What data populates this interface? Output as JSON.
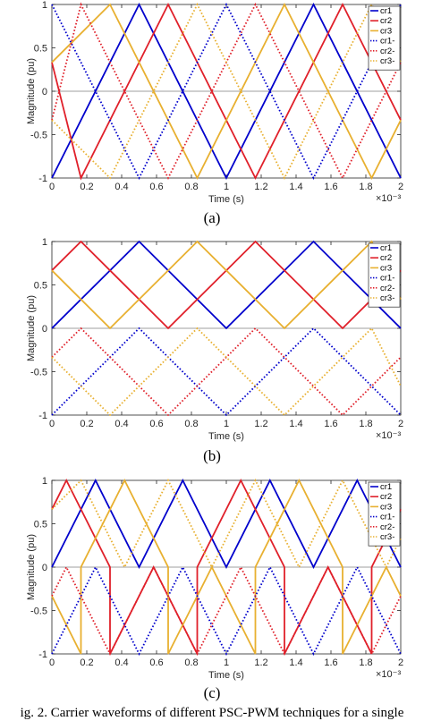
{
  "caption": "ig. 2. Carrier waveforms of different PSC-PWM techniques for a single",
  "legend_labels": [
    "cr1",
    "cr2",
    "cr3",
    "cr1-",
    "cr2-",
    "cr3-"
  ],
  "colors": {
    "cr1": "#0000cc",
    "cr2": "#e0202a",
    "cr3": "#e8b030"
  },
  "chart_data": [
    {
      "type": "line",
      "panel_label": "(a)",
      "xlabel": "Time (s)",
      "ylabel": "Magnitude (pu)",
      "x_exponent_label": "×10⁻³",
      "xlim": [
        0,
        2
      ],
      "ylim": [
        -1,
        1
      ],
      "x_ticks": [
        "0",
        "0.2",
        "0.4",
        "0.6",
        "0.8",
        "1",
        "1.2",
        "1.4",
        "1.6",
        "1.8",
        "2"
      ],
      "y_ticks": [
        "1",
        "0.5",
        "0",
        "-0.5",
        "-1"
      ],
      "grid": false,
      "legend": "top-right",
      "series": [
        {
          "name": "cr1",
          "style": "solid",
          "color": "#0000cc",
          "x": [
            0,
            0.5,
            1,
            1.5,
            2
          ],
          "y": [
            -1,
            1,
            -1,
            1,
            -1
          ]
        },
        {
          "name": "cr2",
          "style": "solid",
          "color": "#e0202a",
          "x": [
            0,
            0.1667,
            0.6667,
            1.1667,
            1.6667,
            2
          ],
          "y": [
            0.333,
            -1,
            1,
            -1,
            1,
            -0.333
          ]
        },
        {
          "name": "cr3",
          "style": "solid",
          "color": "#e8b030",
          "x": [
            0,
            0.3333,
            0.8333,
            1.3333,
            1.8333,
            2
          ],
          "y": [
            0.333,
            1,
            -1,
            1,
            -1,
            -0.333
          ]
        },
        {
          "name": "cr1-",
          "style": "dotted",
          "color": "#0000cc",
          "x": [
            0,
            0.5,
            1,
            1.5,
            2
          ],
          "y": [
            1,
            -1,
            1,
            -1,
            1
          ]
        },
        {
          "name": "cr2-",
          "style": "dotted",
          "color": "#e0202a",
          "x": [
            0,
            0.1667,
            0.6667,
            1.1667,
            1.6667,
            2
          ],
          "y": [
            -0.333,
            1,
            -1,
            1,
            -1,
            0.333
          ]
        },
        {
          "name": "cr3-",
          "style": "dotted",
          "color": "#e8b030",
          "x": [
            0,
            0.3333,
            0.8333,
            1.3333,
            1.8333,
            2
          ],
          "y": [
            -0.333,
            -1,
            1,
            -1,
            1,
            0.333
          ]
        }
      ]
    },
    {
      "type": "line",
      "panel_label": "(b)",
      "xlabel": "Time (s)",
      "ylabel": "Magnitude (pu)",
      "x_exponent_label": "×10⁻³",
      "xlim": [
        0,
        2
      ],
      "ylim": [
        -1,
        1
      ],
      "x_ticks": [
        "0",
        "0.2",
        "0.4",
        "0.6",
        "0.8",
        "1",
        "1.2",
        "1.4",
        "1.6",
        "1.8",
        "2"
      ],
      "y_ticks": [
        "1",
        "0.5",
        "0",
        "-0.5",
        "-1"
      ],
      "grid": false,
      "legend": "top-right",
      "series": [
        {
          "name": "cr1",
          "style": "solid",
          "color": "#0000cc",
          "x": [
            0,
            0.5,
            1,
            1.5,
            2
          ],
          "y": [
            0,
            1,
            0,
            1,
            0
          ]
        },
        {
          "name": "cr2",
          "style": "solid",
          "color": "#e0202a",
          "x": [
            0,
            0.1667,
            0.6667,
            1.1667,
            1.6667,
            2
          ],
          "y": [
            0.667,
            1,
            0,
            1,
            0,
            0.667
          ]
        },
        {
          "name": "cr3",
          "style": "solid",
          "color": "#e8b030",
          "x": [
            0,
            0.3333,
            0.8333,
            1.3333,
            1.8333,
            2
          ],
          "y": [
            0.667,
            0,
            1,
            0,
            1,
            0.333
          ]
        },
        {
          "name": "cr1-",
          "style": "dotted",
          "color": "#0000cc",
          "x": [
            0,
            0.5,
            1,
            1.5,
            2
          ],
          "y": [
            -1,
            0,
            -1,
            0,
            -1
          ]
        },
        {
          "name": "cr2-",
          "style": "dotted",
          "color": "#e0202a",
          "x": [
            0,
            0.1667,
            0.6667,
            1.1667,
            1.6667,
            2
          ],
          "y": [
            -0.333,
            0,
            -1,
            0,
            -1,
            -0.333
          ]
        },
        {
          "name": "cr3-",
          "style": "dotted",
          "color": "#e8b030",
          "x": [
            0,
            0.3333,
            0.8333,
            1.3333,
            1.8333,
            2
          ],
          "y": [
            -0.333,
            -1,
            0,
            -1,
            0,
            -0.667
          ]
        }
      ]
    },
    {
      "type": "line",
      "panel_label": "(c)",
      "xlabel": "Time (s)",
      "ylabel": "Magnitude (pu)",
      "x_exponent_label": "×10⁻³",
      "xlim": [
        0,
        2
      ],
      "ylim": [
        -1,
        1
      ],
      "x_ticks": [
        "0",
        "0.2",
        "0.4",
        "0.6",
        "0.8",
        "1",
        "1.2",
        "1.4",
        "1.6",
        "1.8",
        "2"
      ],
      "y_ticks": [
        "1",
        "0.5",
        "0",
        "-0.5",
        "-1"
      ],
      "grid": false,
      "legend": "top-right",
      "series": [
        {
          "name": "cr1",
          "style": "solid",
          "color": "#0000cc",
          "x": [
            0,
            0.25,
            0.5,
            0.75,
            1,
            1.25,
            1.5,
            1.75,
            2
          ],
          "y": [
            0,
            1,
            0,
            1,
            0,
            1,
            0,
            1,
            0
          ]
        },
        {
          "name": "cr2",
          "style": "solid",
          "color": "#e0202a",
          "x": [
            0,
            0.0833,
            0.3333,
            0.3333,
            0.5833,
            0.8333,
            0.8333,
            1.0833,
            1.3333,
            1.3333,
            1.5833,
            1.8333,
            1.8333,
            2
          ],
          "y": [
            0.667,
            1,
            0,
            -1,
            0,
            -1,
            0,
            1,
            0,
            -1,
            0,
            -1,
            0,
            0.667
          ]
        },
        {
          "name": "cr3",
          "style": "solid",
          "color": "#e8b030",
          "x": [
            0,
            0.1667,
            0.1667,
            0.4167,
            0.6667,
            0.6667,
            0.9167,
            1.1667,
            1.1667,
            1.4167,
            1.6667,
            1.6667,
            1.9167,
            2
          ],
          "y": [
            -0.333,
            -1,
            0,
            1,
            0,
            -1,
            0,
            -1,
            0,
            1,
            0,
            -1,
            0,
            -0.333
          ]
        },
        {
          "name": "cr1-",
          "style": "dotted",
          "color": "#0000cc",
          "x": [
            0,
            0.25,
            0.5,
            0.75,
            1,
            1.25,
            1.5,
            1.75,
            2
          ],
          "y": [
            -1,
            0,
            -1,
            0,
            -1,
            0,
            -1,
            0,
            -1
          ]
        },
        {
          "name": "cr2-",
          "style": "dotted",
          "color": "#e0202a",
          "x": [
            0,
            0.0833,
            0.3333,
            0.5833,
            0.8333,
            1.0833,
            1.3333,
            1.5833,
            1.8333,
            2
          ],
          "y": [
            -0.333,
            0,
            -1,
            0,
            -1,
            0,
            -1,
            0,
            -1,
            -0.333
          ]
        },
        {
          "name": "cr3-",
          "style": "dotted",
          "color": "#e8b030",
          "x": [
            0,
            0.1667,
            0.4167,
            0.6667,
            0.9167,
            1.1667,
            1.4167,
            1.6667,
            1.9167,
            2
          ],
          "y": [
            0.667,
            1,
            0,
            1,
            0,
            1,
            0,
            1,
            0,
            0.333
          ]
        }
      ]
    }
  ]
}
